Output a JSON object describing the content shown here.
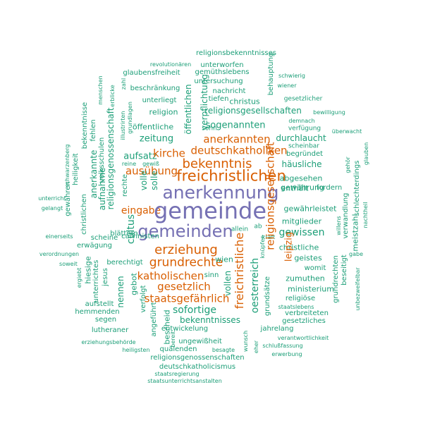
{
  "wordcloud": {
    "palette": {
      "purple": "#7570b3",
      "orange": "#d95f02",
      "teal": "#1b9e77"
    },
    "words": [
      {
        "t": "religionsbekenntnisses",
        "c": "teal"
      },
      {
        "t": "revolutionären",
        "c": "teal"
      },
      {
        "t": "unterworfen",
        "c": "teal"
      },
      {
        "t": "glaubensfreiheit",
        "c": "teal"
      },
      {
        "t": "gemüthslebens",
        "c": "teal"
      },
      {
        "t": "untersuchung",
        "c": "teal"
      },
      {
        "t": "beschränkung",
        "c": "teal"
      },
      {
        "t": "nachricht",
        "c": "teal"
      },
      {
        "t": "wiener",
        "c": "teal"
      },
      {
        "t": "schwierig",
        "c": "teal"
      },
      {
        "t": "tiefen",
        "c": "teal"
      },
      {
        "t": "christus",
        "c": "teal"
      },
      {
        "t": "gesetzlicher",
        "c": "teal"
      },
      {
        "t": "unterliegt",
        "c": "teal"
      },
      {
        "t": "religion",
        "c": "teal"
      },
      {
        "t": "religionsgesellschaften",
        "c": "teal"
      },
      {
        "t": "bewilligung",
        "c": "teal"
      },
      {
        "t": "öffentliche",
        "c": "teal"
      },
      {
        "t": "sohn",
        "c": "teal"
      },
      {
        "t": "verfügung",
        "c": "teal"
      },
      {
        "t": "demnach",
        "c": "teal"
      },
      {
        "t": "überwacht",
        "c": "teal"
      },
      {
        "t": "sogenannten",
        "c": "teal"
      },
      {
        "t": "zeitung",
        "c": "teal"
      },
      {
        "t": "durchlaucht",
        "c": "teal"
      },
      {
        "t": "deutschkatholiken",
        "c": "orange"
      },
      {
        "t": "scheinbar",
        "c": "teal"
      },
      {
        "t": "begründet",
        "c": "teal"
      },
      {
        "t": "anerkannten",
        "c": "orange"
      },
      {
        "t": "aufsatz",
        "c": "teal"
      },
      {
        "t": "kirche",
        "c": "orange"
      },
      {
        "t": "reine",
        "c": "teal"
      },
      {
        "t": "gewiß",
        "c": "teal"
      },
      {
        "t": "bekenntnis",
        "c": "orange"
      },
      {
        "t": "häusliche",
        "c": "teal"
      },
      {
        "t": "ausübung",
        "c": "orange"
      },
      {
        "t": "freichristlichen",
        "c": "orange"
      },
      {
        "t": "abgesehen",
        "c": "teal"
      },
      {
        "t": "gewährung",
        "c": "teal"
      },
      {
        "t": "enthält",
        "c": "teal"
      },
      {
        "t": "fordern",
        "c": "teal"
      },
      {
        "t": "anerkennung",
        "c": "purple"
      },
      {
        "t": "unterricht",
        "c": "teal"
      },
      {
        "t": "gelangt",
        "c": "teal"
      },
      {
        "t": "eingabe",
        "c": "orange"
      },
      {
        "t": "gewährleistet",
        "c": "teal"
      },
      {
        "t": "gemeinde",
        "c": "purple"
      },
      {
        "t": "einerseits",
        "c": "teal"
      },
      {
        "t": "mitglieder",
        "c": "teal"
      },
      {
        "t": "allein",
        "c": "teal"
      },
      {
        "t": "ab",
        "c": "teal"
      },
      {
        "t": "gemeinden",
        "c": "purple"
      },
      {
        "t": "gewissen",
        "c": "teal"
      },
      {
        "t": "blättern",
        "c": "teal"
      },
      {
        "t": "scheine",
        "c": "teal"
      },
      {
        "t": "kraft",
        "c": "teal"
      },
      {
        "t": "erwägung",
        "c": "teal"
      },
      {
        "t": "calvinisten",
        "c": "teal"
      },
      {
        "t": "verordnungen",
        "c": "teal"
      },
      {
        "t": "erziehung",
        "c": "orange"
      },
      {
        "t": "christliche",
        "c": "teal"
      },
      {
        "t": "gabe",
        "c": "teal"
      },
      {
        "t": "soweit",
        "c": "teal"
      },
      {
        "t": "berechtigt",
        "c": "teal"
      },
      {
        "t": "grundrechte",
        "c": "orange"
      },
      {
        "t": "wien",
        "c": "teal"
      },
      {
        "t": "geistes",
        "c": "teal"
      },
      {
        "t": "womit",
        "c": "teal"
      },
      {
        "t": "katholischen",
        "c": "orange"
      },
      {
        "t": "sinn",
        "c": "teal"
      },
      {
        "t": "zumuthen",
        "c": "teal"
      },
      {
        "t": "staatsgefährlich",
        "c": "orange"
      },
      {
        "t": "gesetzlich",
        "c": "orange"
      },
      {
        "t": "ministerium",
        "c": "teal"
      },
      {
        "t": "religiöse",
        "c": "teal"
      },
      {
        "t": "aufstellt",
        "c": "teal"
      },
      {
        "t": "staatslebens",
        "c": "teal"
      },
      {
        "t": "sofortige",
        "c": "teal"
      },
      {
        "t": "verbreiteten",
        "c": "teal"
      },
      {
        "t": "hemmenden",
        "c": "teal"
      },
      {
        "t": "gesetzliches",
        "c": "teal"
      },
      {
        "t": "segen",
        "c": "teal"
      },
      {
        "t": "bekenntnisses",
        "c": "teal"
      },
      {
        "t": "lutheraner",
        "c": "teal"
      },
      {
        "t": "entwickelung",
        "c": "teal"
      },
      {
        "t": "jahrelang",
        "c": "teal"
      },
      {
        "t": "ungewißheit",
        "c": "teal"
      },
      {
        "t": "verantwortlichkeit",
        "c": "teal"
      },
      {
        "t": "erziehungsbehörde",
        "c": "teal"
      },
      {
        "t": "schlußfassung",
        "c": "teal"
      },
      {
        "t": "heiligsten",
        "c": "teal"
      },
      {
        "t": "quälenden",
        "c": "teal"
      },
      {
        "t": "besagte",
        "c": "teal"
      },
      {
        "t": "erwerbung",
        "c": "teal"
      },
      {
        "t": "religionsgenossenschaften",
        "c": "teal"
      },
      {
        "t": "deutschkatholicismus",
        "c": "teal"
      },
      {
        "t": "staatsregierung",
        "c": "teal"
      },
      {
        "t": "staatsunterrichtsanstalten",
        "c": "teal"
      },
      {
        "t": "verpflichtung",
        "c": "teal"
      },
      {
        "t": "behauptung",
        "c": "teal"
      },
      {
        "t": "öffentlichen",
        "c": "teal"
      },
      {
        "t": "religionsgenossenschaft",
        "c": "teal"
      },
      {
        "t": "bekenntnisse",
        "c": "teal"
      },
      {
        "t": "fehlen",
        "c": "teal"
      },
      {
        "t": "volksschulen",
        "c": "teal"
      },
      {
        "t": "anerkannte",
        "c": "teal"
      },
      {
        "t": "aufnahme",
        "c": "teal"
      },
      {
        "t": "heiligkeit",
        "c": "teal"
      },
      {
        "t": "gewähren",
        "c": "teal"
      },
      {
        "t": "christlichen",
        "c": "teal"
      },
      {
        "t": "schwarzenberg",
        "c": "teal"
      },
      {
        "t": "menschen",
        "c": "teal"
      },
      {
        "t": "erblicke",
        "c": "teal"
      },
      {
        "t": "illustrirten",
        "c": "teal"
      },
      {
        "t": "grundlagen",
        "c": "teal"
      },
      {
        "t": "zahl",
        "c": "teal"
      },
      {
        "t": "volle",
        "c": "teal"
      },
      {
        "t": "solle",
        "c": "teal"
      },
      {
        "t": "rechte",
        "c": "teal"
      },
      {
        "t": "cultus",
        "c": "teal"
      },
      {
        "t": "freichristliche",
        "c": "orange"
      },
      {
        "t": "religionsgesellschaft",
        "c": "orange"
      },
      {
        "t": "leipzig",
        "c": "orange"
      },
      {
        "t": "oesterreich",
        "c": "teal"
      },
      {
        "t": "vollen",
        "c": "teal"
      },
      {
        "t": "grundsätze",
        "c": "teal"
      },
      {
        "t": "knüpfen",
        "c": "teal"
      },
      {
        "t": "wunsch",
        "c": "teal"
      },
      {
        "t": "eher",
        "c": "teal"
      },
      {
        "t": "nennen",
        "c": "teal"
      },
      {
        "t": "gebot",
        "c": "teal"
      },
      {
        "t": "verfolgt",
        "c": "teal"
      },
      {
        "t": "bescheid",
        "c": "teal"
      },
      {
        "t": "angeführt",
        "c": "teal"
      },
      {
        "t": "bereit",
        "c": "teal"
      },
      {
        "t": "hiesige",
        "c": "teal"
      },
      {
        "t": "unterrichtes",
        "c": "teal"
      },
      {
        "t": "jesus",
        "c": "teal"
      },
      {
        "t": "ergiebt",
        "c": "teal"
      },
      {
        "t": "glauben",
        "c": "teal"
      },
      {
        "t": "schlechterdings",
        "c": "teal"
      },
      {
        "t": "willens",
        "c": "teal"
      },
      {
        "t": "verwandlung",
        "c": "teal"
      },
      {
        "t": "meistzahl",
        "c": "teal"
      },
      {
        "t": "nachtheil",
        "c": "teal"
      },
      {
        "t": "grundrechten",
        "c": "teal"
      },
      {
        "t": "beseitigt",
        "c": "teal"
      },
      {
        "t": "unbezweifelbar",
        "c": "teal"
      },
      {
        "t": "gehör",
        "c": "teal"
      }
    ]
  }
}
